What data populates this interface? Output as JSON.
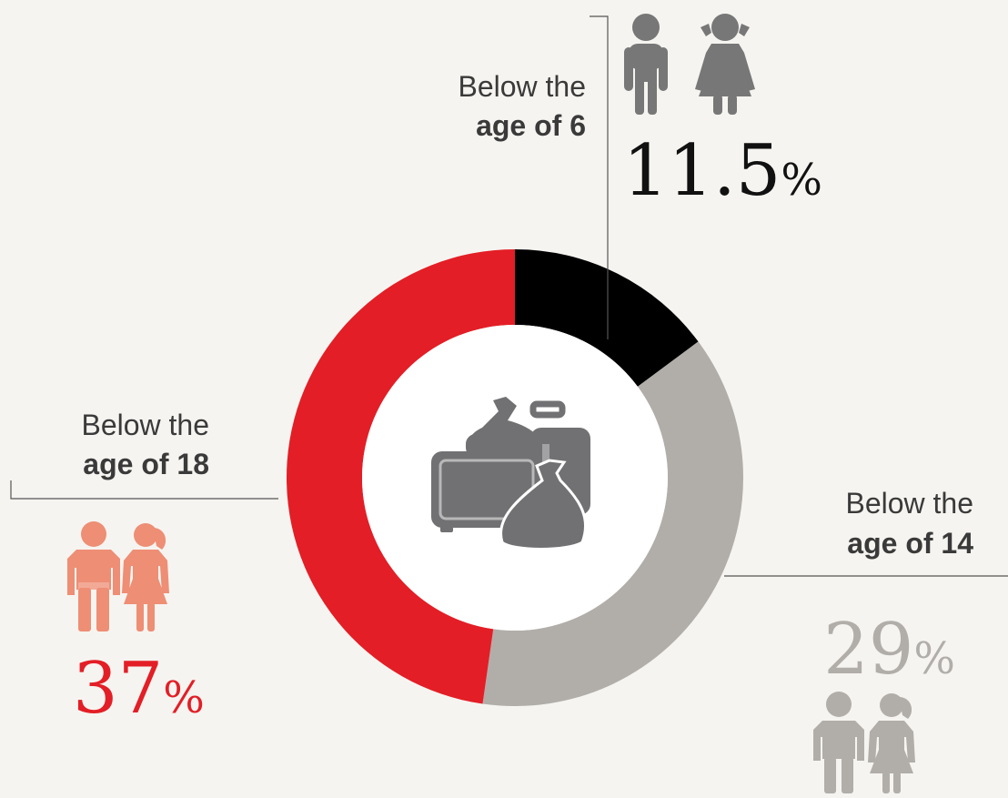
{
  "chart_data": {
    "type": "pie",
    "donut": true,
    "slices": [
      {
        "label_line1": "Below the",
        "label_line2": "age of 6",
        "value": 11.5,
        "display_value": "11.5",
        "unit": "%",
        "color": "#000000",
        "text_color": "#111111",
        "icon": "boy-girl-child-icon",
        "icon_color": "#777777"
      },
      {
        "label_line1": "Below the",
        "label_line2": "age of 14",
        "value": 29,
        "display_value": "29",
        "unit": "%",
        "color": "#b1aeaa",
        "text_color": "#b1aeaa",
        "icon": "boy-girl-teen-icon",
        "icon_color": "#b1aeaa"
      },
      {
        "label_line1": "Below the",
        "label_line2": "age of 18",
        "value": 37,
        "display_value": "37",
        "unit": "%",
        "color": "#e31e26",
        "text_color": "#e31e26",
        "icon": "young-man-woman-icon",
        "icon_color": "#ee8e75"
      }
    ],
    "center_icon": "luggage-bags-icon",
    "center_icon_color": "#717173"
  }
}
